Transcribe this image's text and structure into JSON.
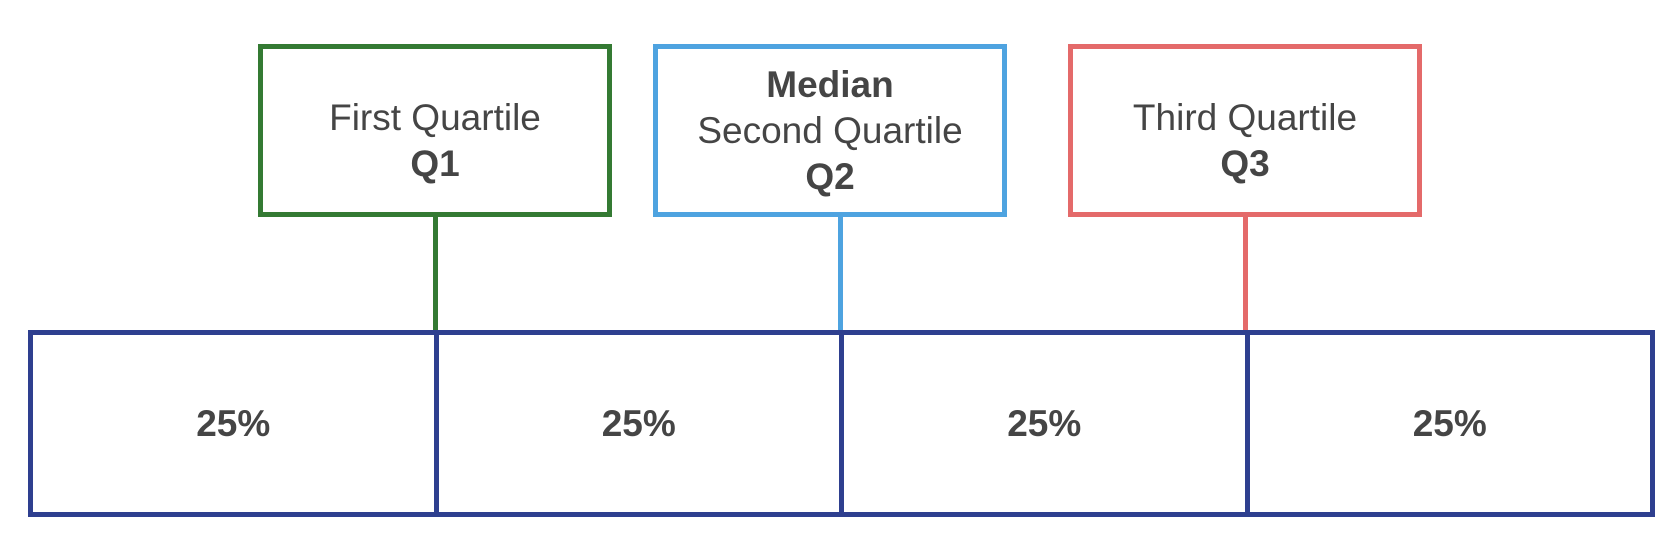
{
  "colors": {
    "q1": "#347a33",
    "q2": "#4ea3e0",
    "q3": "#e46a6a",
    "bar": "#2e3f8f",
    "text": "#454545"
  },
  "quartiles": [
    {
      "id": "q1",
      "lines": [
        {
          "text": "First Quartile",
          "bold": false
        },
        {
          "text": "Q1",
          "bold": true
        }
      ]
    },
    {
      "id": "q2",
      "lines": [
        {
          "text": "Median",
          "bold": true
        },
        {
          "text": "Second Quartile",
          "bold": false
        },
        {
          "text": "Q2",
          "bold": true
        }
      ]
    },
    {
      "id": "q3",
      "lines": [
        {
          "text": "Third Quartile",
          "bold": false
        },
        {
          "text": "Q3",
          "bold": true
        }
      ]
    }
  ],
  "segments": [
    "25%",
    "25%",
    "25%",
    "25%"
  ]
}
